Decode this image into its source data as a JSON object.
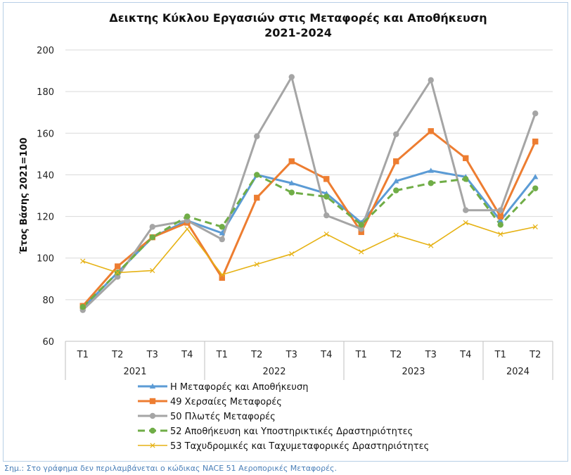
{
  "note": "Σημ.: Στο γράφημα δεν περιλαμβάνεται ο κώδικας NACE 51 Αεροπορικές Μεταφορές.",
  "chart_data": {
    "type": "line",
    "title": "Δεικτης Κύκλου Εργασιών στις Μεταφορές και Αποθήκευση",
    "subtitle": "2021-2024",
    "ylabel": "Έτος Βάσης 2021=100",
    "xlabel": "",
    "ylim": [
      60,
      200
    ],
    "yticks": [
      60,
      80,
      100,
      120,
      140,
      160,
      180,
      200
    ],
    "grid": true,
    "legend_position": "bottom",
    "categories": [
      "Τ1",
      "Τ2",
      "Τ3",
      "Τ4",
      "Τ1",
      "Τ2",
      "Τ3",
      "Τ4",
      "Τ1",
      "Τ2",
      "Τ3",
      "Τ4",
      "Τ1",
      "Τ2"
    ],
    "year_groups": [
      {
        "label": "2021",
        "count": 4
      },
      {
        "label": "2022",
        "count": 4
      },
      {
        "label": "2023",
        "count": 4
      },
      {
        "label": "2024",
        "count": 2
      }
    ],
    "series": [
      {
        "name": "H Μεταφορές και Αποθήκευση",
        "color": "#5b9bd5",
        "marker": "triangle",
        "dash": "solid",
        "values": [
          76,
          93,
          110,
          118,
          112,
          140,
          136,
          131,
          117,
          137,
          142,
          139,
          118,
          139
        ]
      },
      {
        "name": "49 Χερσαίες Μεταφορές",
        "color": "#ed7d31",
        "marker": "square",
        "dash": "solid",
        "values": [
          77,
          96,
          110,
          117,
          90.5,
          129,
          146.5,
          138,
          112.5,
          146.5,
          161,
          148,
          120,
          156
        ]
      },
      {
        "name": "50 Πλωτές Μεταφορές",
        "color": "#a5a5a5",
        "marker": "circle",
        "dash": "solid",
        "values": [
          75,
          91,
          115,
          118,
          109,
          158.5,
          187,
          120.5,
          114,
          159.5,
          185.5,
          123,
          123,
          169.5
        ]
      },
      {
        "name": "52 Αποθήκευση και Υποστηρικτικές Δραστηριότητες",
        "color": "#70ad47",
        "marker": "circle",
        "dash": "dashed",
        "values": [
          76.5,
          93,
          110,
          120,
          115,
          140,
          131.5,
          129.5,
          116,
          132.5,
          136,
          138,
          116,
          133.5
        ]
      },
      {
        "name": "53 Ταχυδρομικές και Ταχυμεταφορικές Δραστηριότητες",
        "color": "#e6b214",
        "marker": "x",
        "dash": "solid",
        "values": [
          98.5,
          93,
          94,
          114,
          92,
          97,
          102,
          111.5,
          103,
          111,
          106,
          117,
          111.5,
          115
        ]
      }
    ]
  }
}
